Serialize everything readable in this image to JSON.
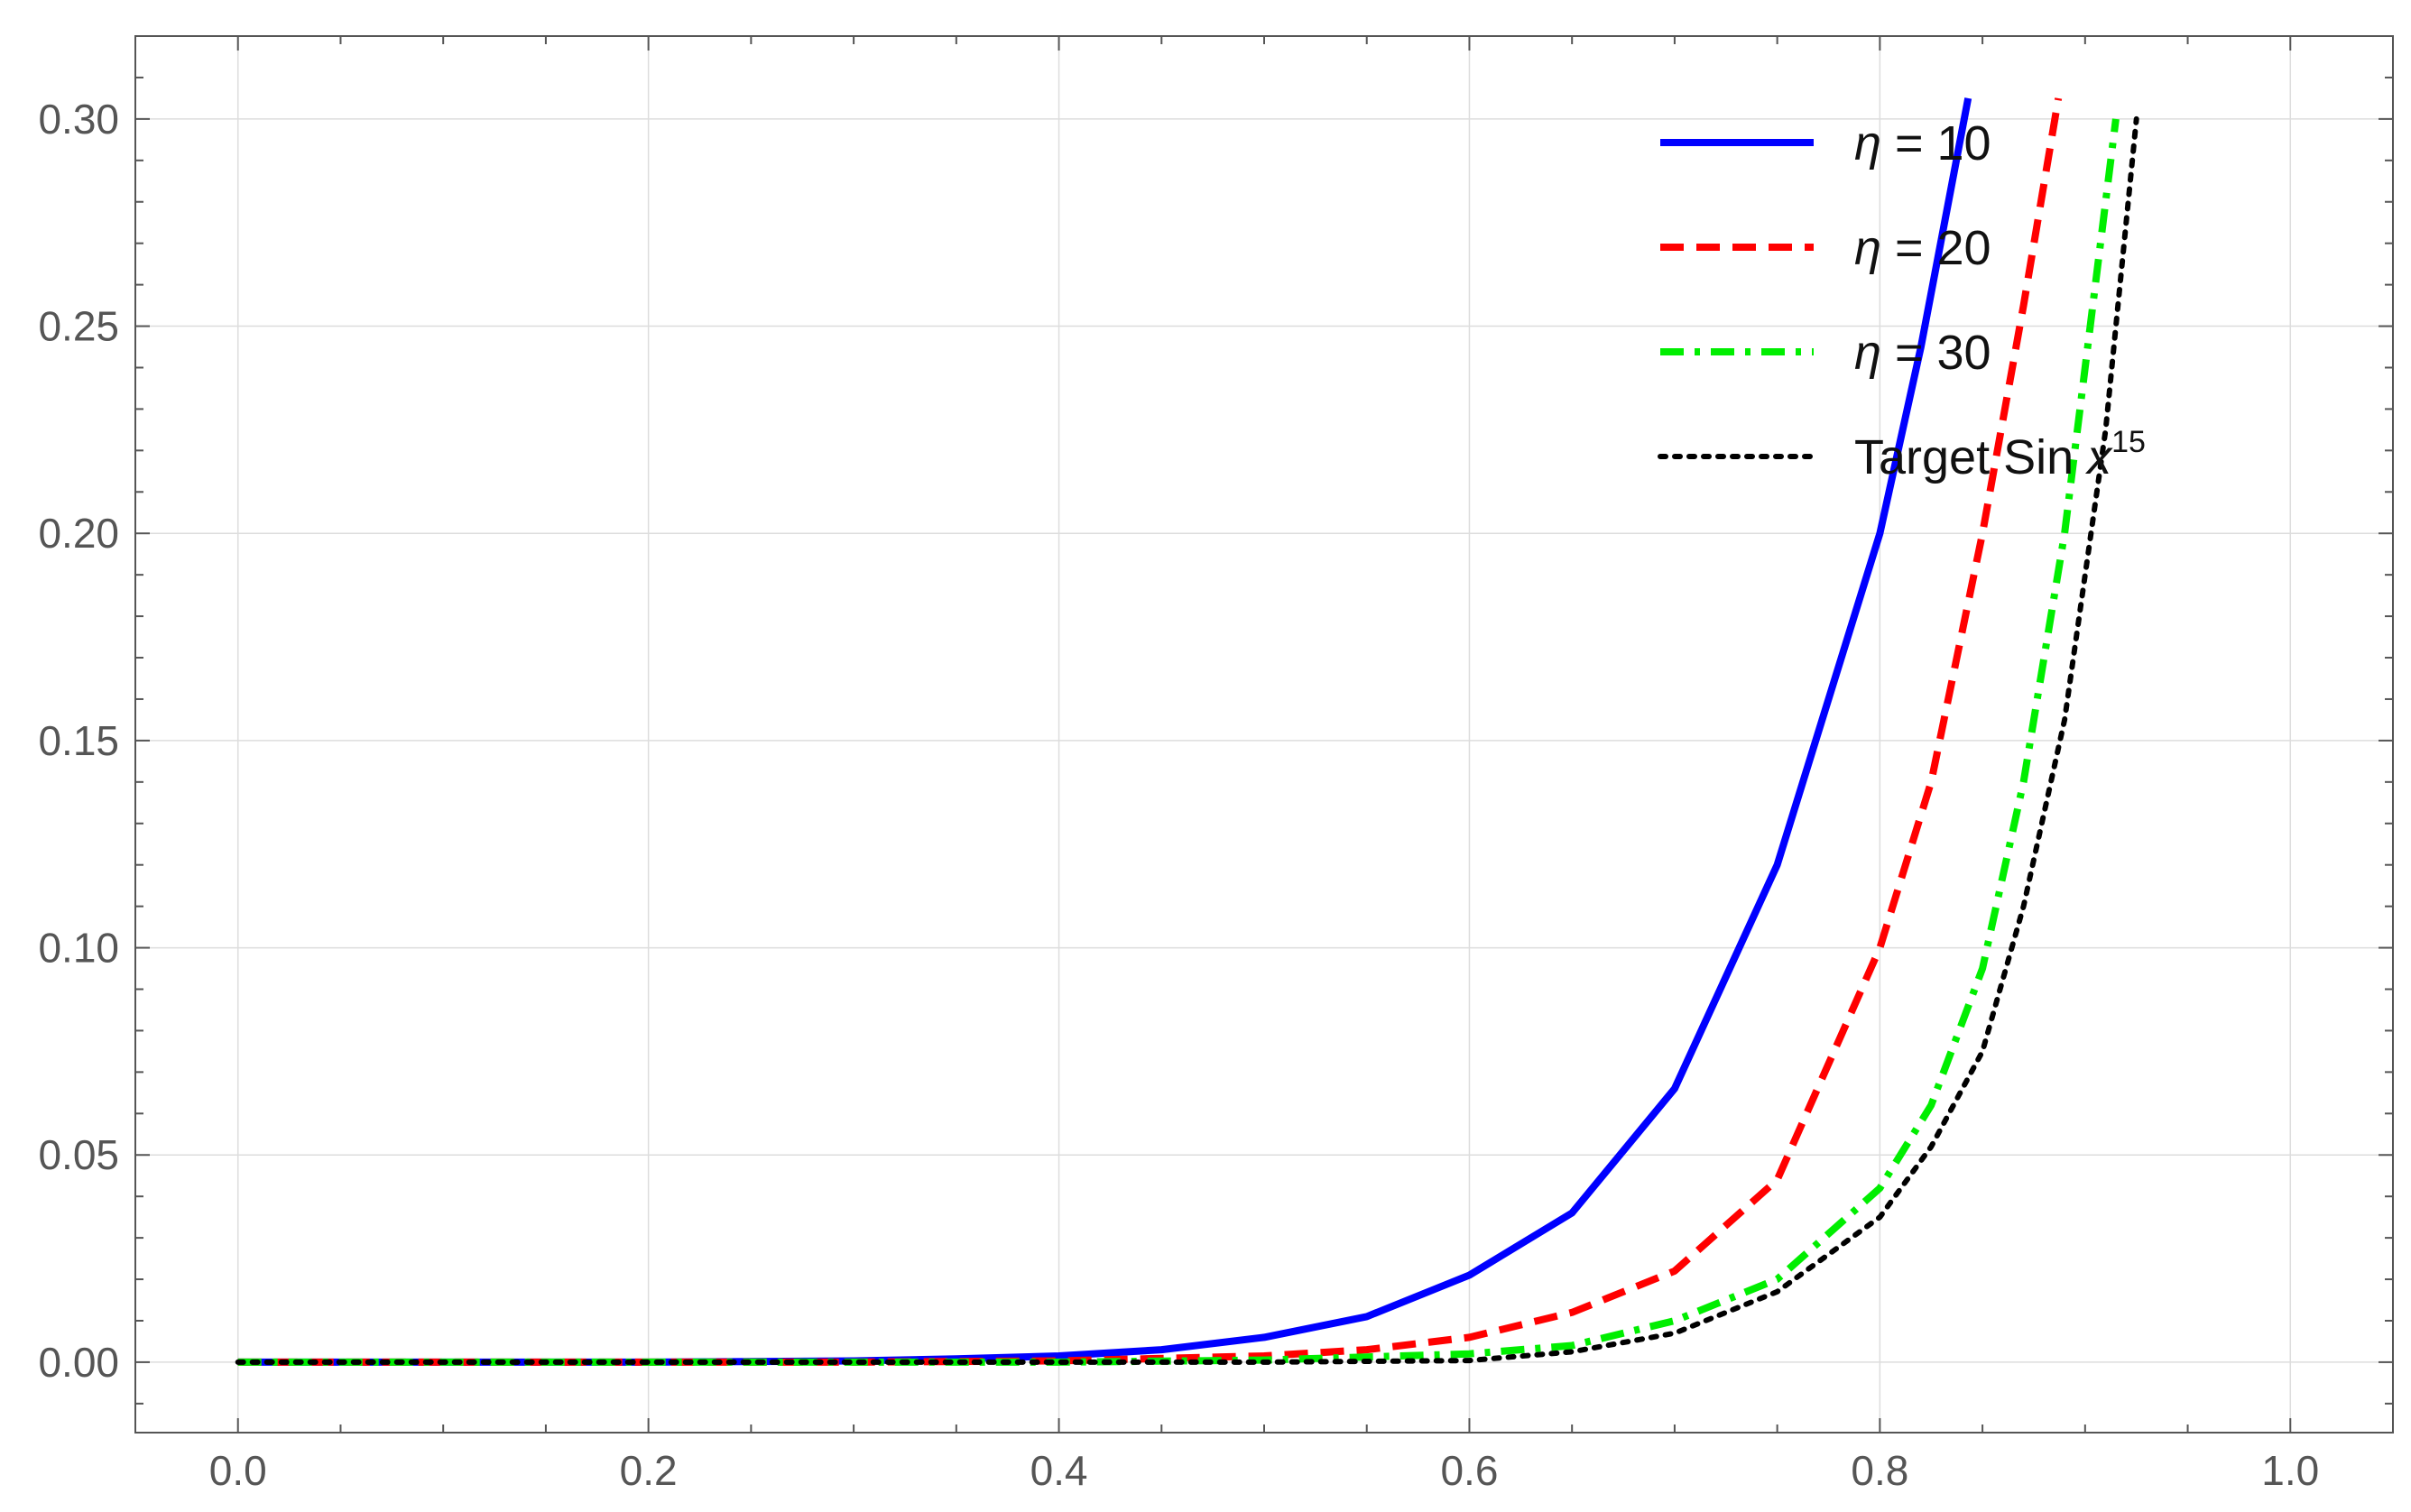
{
  "chart_data": {
    "type": "line",
    "title": "",
    "xlabel": "",
    "ylabel": "",
    "xlim": [
      -0.05,
      1.05
    ],
    "ylim": [
      -0.017,
      0.32
    ],
    "x_ticks": [
      0.0,
      0.2,
      0.4,
      0.6,
      0.8,
      1.0
    ],
    "x_tick_labels": [
      "0.0",
      "0.2",
      "0.4",
      "0.6",
      "0.8",
      "1.0"
    ],
    "y_ticks": [
      0.0,
      0.05,
      0.1,
      0.15,
      0.2,
      0.25,
      0.3
    ],
    "y_tick_labels": [
      "0.00",
      "0.05",
      "0.10",
      "0.15",
      "0.20",
      "0.25",
      "0.30"
    ],
    "grid": true,
    "legend_position": "top-right",
    "series": [
      {
        "name": "η = 10",
        "legend": {
          "symbol": "η",
          "text": " = 10"
        },
        "color": "#0000ff",
        "style": "solid",
        "x": [
          0.0,
          0.2,
          0.3,
          0.35,
          0.4,
          0.45,
          0.5,
          0.55,
          0.6,
          0.65,
          0.7,
          0.75,
          0.8,
          0.82,
          0.843
        ],
        "y": [
          0.0,
          0.0,
          0.0003,
          0.0008,
          0.0015,
          0.003,
          0.006,
          0.011,
          0.021,
          0.036,
          0.066,
          0.12,
          0.2,
          0.245,
          0.305
        ]
      },
      {
        "name": "η = 20",
        "legend": {
          "symbol": "η",
          "text": " = 20"
        },
        "color": "#ff0000",
        "style": "dashed",
        "x": [
          0.0,
          0.3,
          0.4,
          0.5,
          0.55,
          0.6,
          0.65,
          0.7,
          0.75,
          0.8,
          0.825,
          0.85,
          0.87,
          0.887
        ],
        "y": [
          0.0,
          0.0,
          0.0003,
          0.0015,
          0.003,
          0.006,
          0.012,
          0.022,
          0.044,
          0.1,
          0.14,
          0.2,
          0.255,
          0.305
        ]
      },
      {
        "name": "η = 30",
        "legend": {
          "symbol": "η",
          "text": " = 30"
        },
        "color": "#00ee00",
        "style": "dashdot",
        "x": [
          0.0,
          0.4,
          0.5,
          0.6,
          0.65,
          0.7,
          0.75,
          0.8,
          0.825,
          0.85,
          0.87,
          0.89,
          0.905,
          0.915
        ],
        "y": [
          0.0,
          0.0,
          0.0005,
          0.002,
          0.004,
          0.01,
          0.02,
          0.042,
          0.062,
          0.095,
          0.14,
          0.2,
          0.26,
          0.3
        ]
      },
      {
        "name": "Target Sin x^15",
        "legend": {
          "text": "Target Sin ",
          "var": "x",
          "sup": "15"
        },
        "color": "#000000",
        "style": "dotted",
        "x": [
          0.0,
          0.5,
          0.6,
          0.65,
          0.7,
          0.75,
          0.8,
          0.825,
          0.85,
          0.87,
          0.89,
          0.91,
          0.925
        ],
        "y": [
          0.0,
          0.0,
          0.0004,
          0.0025,
          0.007,
          0.017,
          0.035,
          0.052,
          0.075,
          0.11,
          0.155,
          0.225,
          0.3
        ]
      }
    ]
  }
}
